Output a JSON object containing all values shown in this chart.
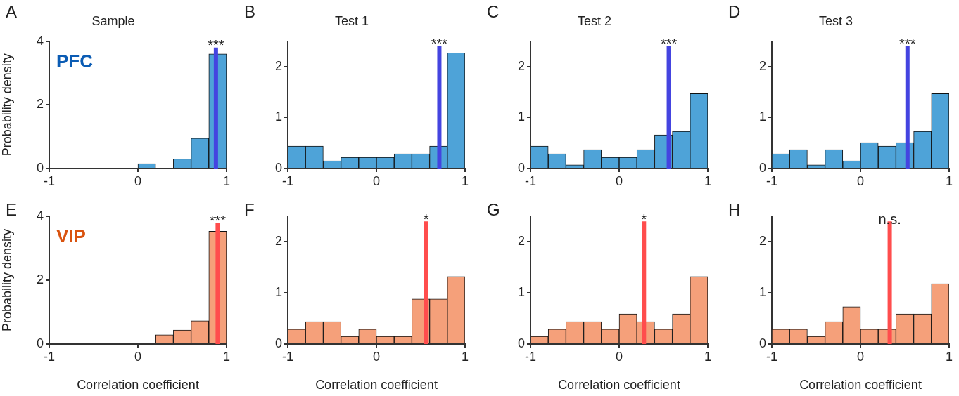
{
  "chart_data": [
    {
      "type": "histogram",
      "title": "Sample",
      "ylabel": "Probability density",
      "bins": [
        -1,
        -0.8,
        -0.6,
        -0.4,
        -0.2,
        0,
        0.2,
        0.4,
        0.6,
        0.8,
        1
      ],
      "values": [
        0,
        0,
        0,
        0,
        0,
        0.15,
        0,
        0.3,
        0.95,
        3.6
      ],
      "color": "#4ea3d8",
      "xlim": [
        -1,
        1
      ],
      "xticks": [
        -1,
        0,
        1
      ],
      "ylim": [
        0,
        4
      ],
      "yticks": [
        0,
        2,
        4
      ],
      "grid": false,
      "legend": false,
      "ref_lines": [
        {
          "axis": "x",
          "value": 0.88,
          "color": "#4444e0"
        }
      ],
      "annotations": [
        "A",
        "PFC",
        {
          "text": "***",
          "x": 0.88,
          "y": 3.8
        }
      ]
    },
    {
      "type": "histogram",
      "title": "Test 1",
      "bins": [
        -1,
        -0.8,
        -0.6,
        -0.4,
        -0.2,
        0,
        0.2,
        0.4,
        0.6,
        0.8,
        1
      ],
      "values": [
        0.44,
        0.44,
        0.15,
        0.22,
        0.22,
        0.22,
        0.29,
        0.29,
        0.44,
        2.27
      ],
      "color": "#4ea3d8",
      "xlim": [
        -1,
        1
      ],
      "xticks": [
        -1,
        0,
        1
      ],
      "ylim": [
        0,
        2.5
      ],
      "yticks": [
        0,
        1,
        2
      ],
      "grid": false,
      "legend": false,
      "ref_lines": [
        {
          "axis": "x",
          "value": 0.71,
          "color": "#4444e0"
        }
      ],
      "annotations": [
        "B",
        {
          "text": "***",
          "x": 0.71,
          "y": 2.4
        }
      ]
    },
    {
      "type": "histogram",
      "title": "Test 2",
      "bins": [
        -1,
        -0.8,
        -0.6,
        -0.4,
        -0.2,
        0,
        0.2,
        0.4,
        0.6,
        0.8,
        1
      ],
      "values": [
        0.44,
        0.29,
        0.07,
        0.37,
        0.22,
        0.22,
        0.37,
        0.66,
        0.73,
        1.47
      ],
      "color": "#4ea3d8",
      "xlim": [
        -1,
        1
      ],
      "xticks": [
        -1,
        0,
        1
      ],
      "ylim": [
        0,
        2.5
      ],
      "yticks": [
        0,
        1,
        2
      ],
      "grid": false,
      "legend": false,
      "ref_lines": [
        {
          "axis": "x",
          "value": 0.56,
          "color": "#4444e0"
        }
      ],
      "annotations": [
        "C",
        {
          "text": "***",
          "x": 0.56,
          "y": 2.4
        }
      ]
    },
    {
      "type": "histogram",
      "title": "Test 3",
      "bins": [
        -1,
        -0.8,
        -0.6,
        -0.4,
        -0.2,
        0,
        0.2,
        0.4,
        0.6,
        0.8,
        1
      ],
      "values": [
        0.29,
        0.37,
        0.07,
        0.37,
        0.15,
        0.51,
        0.44,
        0.51,
        0.73,
        1.47
      ],
      "color": "#4ea3d8",
      "xlim": [
        -1,
        1
      ],
      "xticks": [
        -1,
        0,
        1
      ],
      "ylim": [
        0,
        2.5
      ],
      "yticks": [
        0,
        1,
        2
      ],
      "grid": false,
      "legend": false,
      "ref_lines": [
        {
          "axis": "x",
          "value": 0.53,
          "color": "#4444e0"
        }
      ],
      "annotations": [
        "D",
        {
          "text": "***",
          "x": 0.53,
          "y": 2.4
        }
      ]
    },
    {
      "type": "histogram",
      "xlabel": "Correlation coefficient",
      "ylabel": "Probability density",
      "bins": [
        -1,
        -0.8,
        -0.6,
        -0.4,
        -0.2,
        0,
        0.2,
        0.4,
        0.6,
        0.8,
        1
      ],
      "values": [
        0,
        0,
        0,
        0,
        0,
        0,
        0.29,
        0.44,
        0.73,
        3.53
      ],
      "color": "#f5a07a",
      "xlim": [
        -1,
        1
      ],
      "xticks": [
        -1,
        0,
        1
      ],
      "ylim": [
        0,
        4
      ],
      "yticks": [
        0,
        2,
        4
      ],
      "grid": false,
      "legend": false,
      "ref_lines": [
        {
          "axis": "x",
          "value": 0.9,
          "color": "#ff4d4d"
        }
      ],
      "annotations": [
        "E",
        "VIP",
        {
          "text": "***",
          "x": 0.9,
          "y": 3.8
        }
      ]
    },
    {
      "type": "histogram",
      "xlabel": "Correlation coefficient",
      "bins": [
        -1,
        -0.8,
        -0.6,
        -0.4,
        -0.2,
        0,
        0.2,
        0.4,
        0.6,
        0.8,
        1
      ],
      "values": [
        0.29,
        0.44,
        0.44,
        0.15,
        0.29,
        0.15,
        0.15,
        0.88,
        0.88,
        1.32
      ],
      "color": "#f5a07a",
      "xlim": [
        -1,
        1
      ],
      "xticks": [
        -1,
        0,
        1
      ],
      "ylim": [
        0,
        2.5
      ],
      "yticks": [
        0,
        1,
        2
      ],
      "grid": false,
      "legend": false,
      "ref_lines": [
        {
          "axis": "x",
          "value": 0.56,
          "color": "#ff4d4d"
        }
      ],
      "annotations": [
        "F",
        {
          "text": "*",
          "x": 0.56,
          "y": 2.4
        }
      ]
    },
    {
      "type": "histogram",
      "xlabel": "Correlation coefficient",
      "bins": [
        -1,
        -0.8,
        -0.6,
        -0.4,
        -0.2,
        0,
        0.2,
        0.4,
        0.6,
        0.8,
        1
      ],
      "values": [
        0.15,
        0.29,
        0.44,
        0.44,
        0.29,
        0.59,
        0.44,
        0.29,
        0.59,
        1.32
      ],
      "color": "#f5a07a",
      "xlim": [
        -1,
        1
      ],
      "xticks": [
        -1,
        0,
        1
      ],
      "ylim": [
        0,
        2.5
      ],
      "yticks": [
        0,
        1,
        2
      ],
      "grid": false,
      "legend": false,
      "ref_lines": [
        {
          "axis": "x",
          "value": 0.28,
          "color": "#ff4d4d"
        }
      ],
      "annotations": [
        "G",
        {
          "text": "*",
          "x": 0.28,
          "y": 2.4
        }
      ]
    },
    {
      "type": "histogram",
      "xlabel": "Correlation coefficient",
      "bins": [
        -1,
        -0.8,
        -0.6,
        -0.4,
        -0.2,
        0,
        0.2,
        0.4,
        0.6,
        0.8,
        1
      ],
      "values": [
        0.29,
        0.29,
        0.15,
        0.44,
        0.73,
        0.29,
        0.29,
        0.59,
        0.59,
        1.18
      ],
      "color": "#f5a07a",
      "xlim": [
        -1,
        1
      ],
      "xticks": [
        -1,
        0,
        1
      ],
      "ylim": [
        0,
        2.5
      ],
      "yticks": [
        0,
        1,
        2
      ],
      "grid": false,
      "legend": false,
      "ref_lines": [
        {
          "axis": "x",
          "value": 0.33,
          "color": "#ff4d4d"
        }
      ],
      "annotations": [
        "H",
        {
          "text": "n.s.",
          "x": 0.33,
          "y": 2.4
        }
      ]
    }
  ]
}
